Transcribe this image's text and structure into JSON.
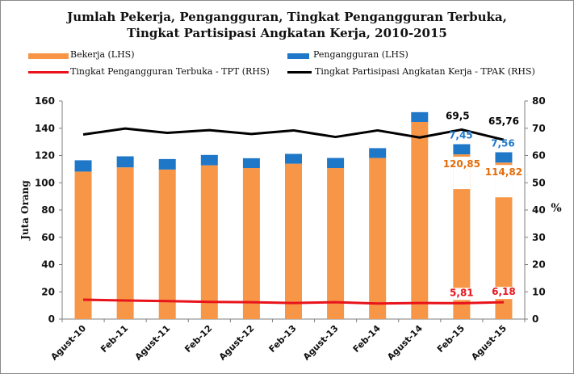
{
  "chart_data": {
    "type": "bar",
    "title": "Jumlah Pekerja, Pengangguran, Tingkat Pengangguran Terbuka,",
    "subtitle": "Tingkat Partisipasi Angkatan Kerja, 2010-2015",
    "categories": [
      "Agust-10",
      "Feb-11",
      "Agust-11",
      "Feb-12",
      "Agust-12",
      "Feb-13",
      "Agust-13",
      "Feb-14",
      "Agust-14",
      "Feb-15",
      "Agust-15"
    ],
    "ylabel_left": "Juta Orang",
    "ylabel_right": "%",
    "ylim_left": [
      0,
      160
    ],
    "ylim_right": [
      0,
      80
    ],
    "yticks_left": [
      "0",
      "20",
      "40",
      "60",
      "80",
      "100",
      "120",
      "140",
      "160"
    ],
    "yticks_right": [
      "0",
      "10",
      "20",
      "30",
      "40",
      "50",
      "60",
      "70",
      "80"
    ],
    "series": [
      {
        "name": "Bekerja (LHS)",
        "kind": "bar",
        "axis": "left",
        "color": "#F79646",
        "values": [
          108.2,
          111.3,
          109.7,
          112.8,
          110.8,
          114.0,
          110.8,
          118.2,
          144.6,
          120.85,
          114.82
        ]
      },
      {
        "name": "Pengangguran (LHS)",
        "kind": "bar-stacked",
        "axis": "left",
        "color": "#1F77C8",
        "values": [
          8.3,
          8.1,
          7.7,
          7.6,
          7.2,
          7.2,
          7.4,
          7.2,
          7.2,
          7.45,
          7.56
        ]
      },
      {
        "name": "Tingkat Pengangguran Terbuka - TPT (RHS)",
        "kind": "line",
        "axis": "right",
        "color": "#E8131B",
        "values": [
          7.1,
          6.8,
          6.6,
          6.3,
          6.2,
          5.9,
          6.2,
          5.7,
          5.9,
          5.81,
          6.18
        ]
      },
      {
        "name": "Tingkat Partisipasi Angkatan Kerja - TPAK (RHS)",
        "kind": "line",
        "axis": "right",
        "color": "#000000",
        "values": [
          67.7,
          69.9,
          68.3,
          69.3,
          67.9,
          69.2,
          66.8,
          69.2,
          66.6,
          69.5,
          65.76
        ]
      }
    ],
    "data_labels": [
      {
        "text": "120,85",
        "series": "Bekerja (LHS)",
        "index": 9,
        "color": "#E46C0A"
      },
      {
        "text": "114,82",
        "series": "Bekerja (LHS)",
        "index": 10,
        "color": "#E46C0A"
      },
      {
        "text": "7,45",
        "series": "Pengangguran (LHS)",
        "index": 9,
        "color": "#1F77C8"
      },
      {
        "text": "7,56",
        "series": "Pengangguran (LHS)",
        "index": 10,
        "color": "#1F77C8"
      },
      {
        "text": "69,5",
        "series": "Tingkat Partisipasi Angkatan Kerja - TPAK (RHS)",
        "index": 9,
        "color": "#000000"
      },
      {
        "text": "65,76",
        "series": "Tingkat Partisipasi Angkatan Kerja - TPAK (RHS)",
        "index": 10,
        "color": "#000000"
      },
      {
        "text": "5,81",
        "series": "Tingkat Pengangguran Terbuka - TPT (RHS)",
        "index": 9,
        "color": "#E8131B"
      },
      {
        "text": "6,18",
        "series": "Tingkat Pengangguran Terbuka - TPT (RHS)",
        "index": 10,
        "color": "#E8131B"
      }
    ],
    "legend_position": "top",
    "grid": false
  },
  "legend": {
    "bekerja": "Bekerja (LHS)",
    "pengangguran": "Pengangguran (LHS)",
    "tpt": "Tingkat Pengangguran Terbuka - TPT (RHS)",
    "tpak": "Tingkat Partisipasi Angkatan Kerja - TPAK (RHS)"
  }
}
